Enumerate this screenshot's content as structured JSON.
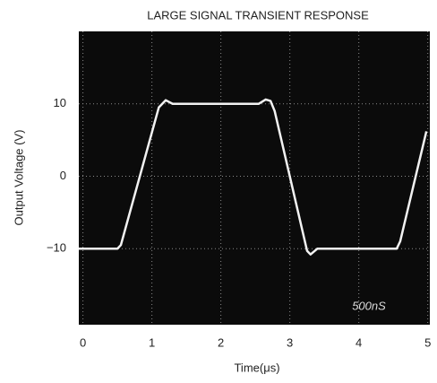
{
  "chart_data": {
    "type": "line",
    "title": "LARGE SIGNAL TRANSIENT RESPONSE",
    "x_label": "Time(μs)",
    "y_label": "Output Voltage (V)",
    "annotation": "500nS",
    "background": "#0b0b0b",
    "grid": true,
    "xlim": [
      -0.06,
      5.03
    ],
    "xticks": [
      0,
      1,
      2,
      3,
      4,
      5
    ],
    "ylim": [
      -20.5,
      20
    ],
    "yticks": [
      10,
      0,
      {
        "value": -10,
        "label": "−10"
      }
    ],
    "x": [
      -0.06,
      0.5,
      0.55,
      1.1,
      1.2,
      1.3,
      2.55,
      2.65,
      2.72,
      2.78,
      3.25,
      3.3,
      3.4,
      4.55,
      4.6,
      4.98
    ],
    "series": [
      {
        "name": "Output",
        "color": "#f2f2f2",
        "values": [
          -10,
          -10,
          -9.5,
          9.5,
          10.5,
          10,
          10,
          10.6,
          10.4,
          9,
          -10.3,
          -10.8,
          -10,
          -10,
          -9,
          6.2
        ]
      }
    ]
  }
}
